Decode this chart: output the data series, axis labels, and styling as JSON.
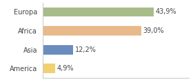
{
  "categories": [
    "Europa",
    "Africa",
    "Asia",
    "America"
  ],
  "values": [
    43.9,
    39.0,
    12.2,
    4.9
  ],
  "labels": [
    "43,9%",
    "39,0%",
    "12,2%",
    "4,9%"
  ],
  "bar_colors": [
    "#a8bc8a",
    "#e8b98a",
    "#6b8cbf",
    "#f0d070"
  ],
  "background_color": "#ffffff",
  "xlim": [
    0,
    58
  ],
  "bar_height": 0.5,
  "label_fontsize": 7.0,
  "category_fontsize": 7.0,
  "label_color": "#444444",
  "axis_line_color": "#cccccc"
}
